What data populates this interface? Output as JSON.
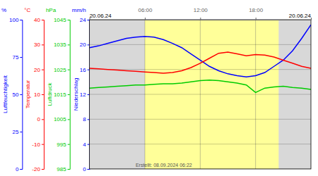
{
  "chart_data": {
    "type": "line",
    "x": [
      0,
      1,
      2,
      3,
      4,
      5,
      6,
      7,
      8,
      9,
      10,
      11,
      12,
      13,
      14,
      15,
      16,
      17,
      18,
      19,
      20,
      21,
      22,
      23,
      24
    ],
    "xlim": [
      0,
      24
    ],
    "xticks": [
      {
        "value": 6,
        "label": "06:00"
      },
      {
        "value": 12,
        "label": "12:00"
      },
      {
        "value": 18,
        "label": "18:00"
      }
    ],
    "ylim": [
      0,
      24
    ],
    "yticks": [
      0,
      4,
      8,
      12,
      16,
      20,
      24
    ],
    "grid": true,
    "series": [
      {
        "color": "#0000ff",
        "values": [
          19.5,
          19.8,
          20.2,
          20.6,
          21.0,
          21.2,
          21.3,
          21.2,
          20.8,
          20.2,
          19.5,
          18.5,
          17.5,
          16.5,
          15.8,
          15.3,
          15.0,
          14.8,
          15.0,
          15.5,
          16.5,
          17.5,
          19.0,
          21.0,
          23.2
        ]
      },
      {
        "color": "#ff0000",
        "values": [
          16.2,
          16.1,
          16.0,
          15.9,
          15.8,
          15.7,
          15.6,
          15.5,
          15.4,
          15.5,
          15.8,
          16.3,
          17.0,
          17.8,
          18.6,
          18.8,
          18.5,
          18.2,
          18.4,
          18.3,
          18.0,
          17.5,
          17.0,
          16.5,
          16.2
        ]
      },
      {
        "color": "#00cc00",
        "values": [
          13.0,
          13.1,
          13.2,
          13.3,
          13.4,
          13.5,
          13.5,
          13.6,
          13.7,
          13.7,
          13.8,
          14.0,
          14.2,
          14.3,
          14.2,
          14.0,
          13.8,
          13.5,
          12.3,
          13.0,
          13.2,
          13.3,
          13.1,
          13.0,
          12.8
        ]
      }
    ],
    "y_axes": [
      {
        "label": "Luftfeuchtigkeit",
        "unit": "%",
        "color": "#0000ff",
        "lim": [
          0,
          100
        ],
        "ticks": [
          100,
          75,
          50,
          25,
          0
        ]
      },
      {
        "label": "Temperatur",
        "unit": "°C",
        "color": "#ff0000",
        "lim": [
          -20,
          40
        ],
        "ticks": [
          40,
          30,
          20,
          10,
          0,
          -10,
          -20
        ]
      },
      {
        "label": "Luftdruck",
        "unit": "hPa",
        "color": "#00cc00",
        "lim": [
          985,
          1045
        ],
        "ticks": [
          1045,
          1035,
          1025,
          1015,
          1005,
          995,
          985
        ]
      },
      {
        "label": "Niederschlag",
        "unit": "mm/h",
        "color": "#0000ff",
        "lim": [
          0,
          24
        ],
        "ticks": [
          24,
          20,
          16,
          12,
          8,
          4,
          0
        ]
      }
    ],
    "daylight": [
      [
        6,
        12
      ],
      [
        12,
        18
      ],
      [
        18,
        20.5
      ]
    ],
    "daylight_color": "#ffff99",
    "night_color": "#d8d8d8",
    "annotations": [
      "20.06.24",
      "20.06.24",
      "Erstellt: 08.09.2024 06:22"
    ]
  }
}
